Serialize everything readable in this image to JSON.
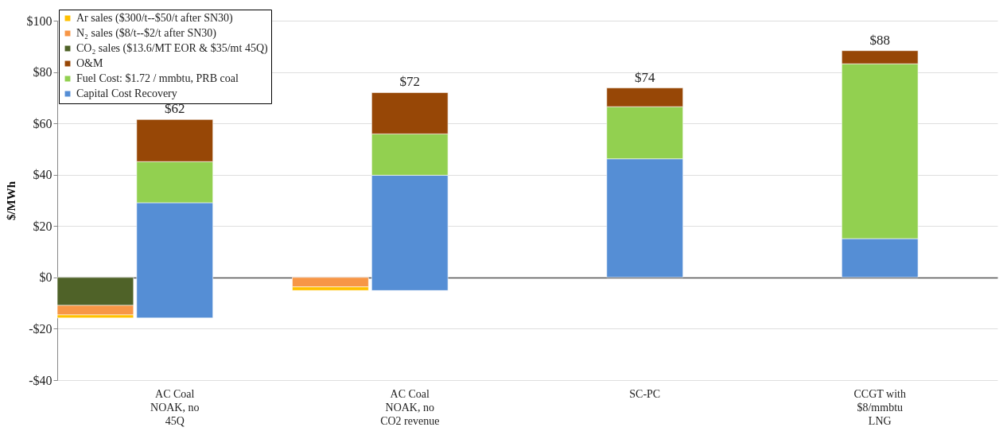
{
  "chart_data": {
    "type": "bar",
    "stacked": true,
    "ylabel": "$/MWh",
    "categories": [
      "AC Coal\nNOAK, no\n45Q",
      "AC Coal\nNOAK, no\nCO2 revenue",
      "SC-PC",
      "CCGT with\n$8/mmbtu\nLNG"
    ],
    "series": [
      {
        "name": "CO₂ sales ($13.6/MT EOR & $35/mt 45Q)",
        "color": "#4f6228",
        "values": [
          -10.9,
          null,
          null,
          null
        ]
      },
      {
        "name": "N₂ sales ($8/t--$2/t after SN30)",
        "color": "#f79646",
        "values": [
          -3.7,
          -3.7,
          null,
          null
        ]
      },
      {
        "name": "Ar sales ($300/t--$50/t after SN30)",
        "color": "#ffc000",
        "values": [
          -1.2,
          -1.4,
          null,
          null
        ]
      },
      {
        "name": "Capital Cost Recovery",
        "color": "#558ed5",
        "base": [
          -15.8,
          -5.1,
          0,
          0
        ],
        "values": [
          44.9,
          44.9,
          46.2,
          15.1
        ]
      },
      {
        "name": "Fuel Cost: $1.72 / mmbtu, PRB coal",
        "color": "#92d050",
        "values": [
          16.0,
          16.1,
          20.3,
          68.1
        ]
      },
      {
        "name": "O&M",
        "color": "#974706",
        "values": [
          16.4,
          16.1,
          7.3,
          5.1
        ]
      }
    ],
    "totals": [
      "$62",
      "$72",
      "$74",
      "$88"
    ],
    "ylim": [
      -40,
      100
    ],
    "yticks": [
      {
        "value": -40,
        "label": "-$40"
      },
      {
        "value": -20,
        "label": "-$20"
      },
      {
        "value": 0,
        "label": "$0"
      },
      {
        "value": 20,
        "label": "$20"
      },
      {
        "value": 40,
        "label": "$40"
      },
      {
        "value": 60,
        "label": "$60"
      },
      {
        "value": 80,
        "label": "$80"
      },
      {
        "value": 100,
        "label": "$100"
      }
    ],
    "grid": "y",
    "legend": "top left"
  }
}
